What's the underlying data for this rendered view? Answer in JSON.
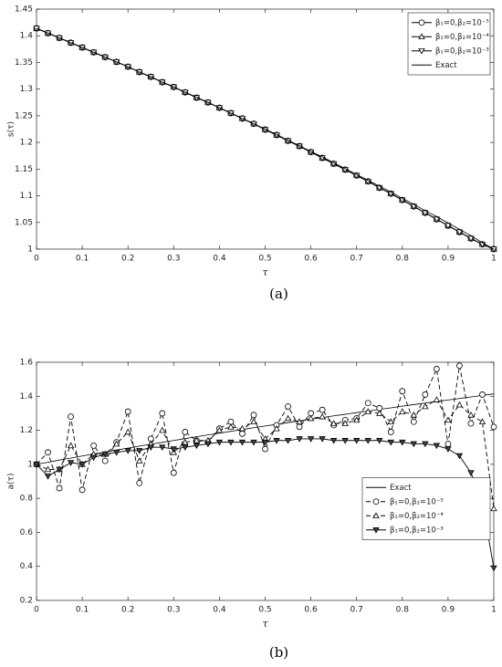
{
  "chart_data": [
    {
      "type": "line",
      "caption": "(a)",
      "xlabel": "τ",
      "ylabel": "s(τ)",
      "x": [
        0,
        0.025,
        0.05,
        0.075,
        0.1,
        0.125,
        0.15,
        0.175,
        0.2,
        0.225,
        0.25,
        0.275,
        0.3,
        0.325,
        0.35,
        0.375,
        0.4,
        0.425,
        0.45,
        0.475,
        0.5,
        0.525,
        0.55,
        0.575,
        0.6,
        0.625,
        0.65,
        0.675,
        0.7,
        0.725,
        0.75,
        0.775,
        0.8,
        0.825,
        0.85,
        0.875,
        0.9,
        0.925,
        0.95,
        0.975,
        1
      ],
      "xlim": [
        0,
        1
      ],
      "xticks": [
        0,
        0.1,
        0.2,
        0.3,
        0.4,
        0.5,
        0.6,
        0.7,
        0.8,
        0.9,
        1
      ],
      "ylim": [
        1,
        1.45
      ],
      "yticks": [
        1,
        1.05,
        1.1,
        1.15,
        1.2,
        1.25,
        1.3,
        1.35,
        1.4,
        1.45
      ],
      "legend": "northeast",
      "series": [
        {
          "name": "β₁=0,β₂=10⁻⁵",
          "color": "#000000",
          "marker": "o",
          "linestyle": "solid",
          "values": [
            1.414,
            1.405,
            1.396,
            1.387,
            1.378,
            1.369,
            1.36,
            1.351,
            1.342,
            1.332,
            1.323,
            1.313,
            1.304,
            1.294,
            1.284,
            1.275,
            1.265,
            1.255,
            1.245,
            1.235,
            1.224,
            1.214,
            1.203,
            1.193,
            1.182,
            1.171,
            1.16,
            1.149,
            1.138,
            1.127,
            1.115,
            1.104,
            1.092,
            1.08,
            1.068,
            1.056,
            1.044,
            1.032,
            1.02,
            1.009,
            1.0
          ]
        },
        {
          "name": "β₁=0,β₂=10⁻⁴",
          "color": "#000000",
          "marker": "^",
          "linestyle": "solid",
          "values": [
            1.414,
            1.405,
            1.396,
            1.387,
            1.378,
            1.369,
            1.36,
            1.351,
            1.342,
            1.332,
            1.323,
            1.313,
            1.304,
            1.294,
            1.284,
            1.275,
            1.265,
            1.255,
            1.245,
            1.235,
            1.224,
            1.214,
            1.203,
            1.193,
            1.182,
            1.171,
            1.16,
            1.149,
            1.138,
            1.127,
            1.115,
            1.104,
            1.092,
            1.08,
            1.068,
            1.056,
            1.044,
            1.032,
            1.02,
            1.009,
            1.0
          ]
        },
        {
          "name": "β₁=0,β₂=10⁻³",
          "color": "#000000",
          "marker": "v",
          "linestyle": "solid",
          "values": [
            1.414,
            1.405,
            1.396,
            1.387,
            1.378,
            1.369,
            1.36,
            1.351,
            1.342,
            1.332,
            1.323,
            1.313,
            1.304,
            1.294,
            1.284,
            1.275,
            1.265,
            1.255,
            1.245,
            1.235,
            1.224,
            1.214,
            1.203,
            1.193,
            1.182,
            1.171,
            1.16,
            1.149,
            1.138,
            1.127,
            1.115,
            1.104,
            1.092,
            1.08,
            1.068,
            1.056,
            1.044,
            1.032,
            1.02,
            1.009,
            1.0
          ]
        },
        {
          "name": "Exact",
          "color": "#000000",
          "marker": "none",
          "linestyle": "solid",
          "values": [
            1.414,
            1.405,
            1.396,
            1.387,
            1.378,
            1.369,
            1.36,
            1.351,
            1.342,
            1.332,
            1.323,
            1.313,
            1.304,
            1.294,
            1.285,
            1.275,
            1.265,
            1.255,
            1.245,
            1.235,
            1.225,
            1.215,
            1.204,
            1.194,
            1.183,
            1.173,
            1.162,
            1.151,
            1.14,
            1.129,
            1.118,
            1.107,
            1.095,
            1.084,
            1.072,
            1.061,
            1.049,
            1.037,
            1.025,
            1.012,
            1.0
          ]
        }
      ]
    },
    {
      "type": "line",
      "caption": "(b)",
      "xlabel": "τ",
      "ylabel": "a(τ)",
      "x": [
        0,
        0.025,
        0.05,
        0.075,
        0.1,
        0.125,
        0.15,
        0.175,
        0.2,
        0.225,
        0.25,
        0.275,
        0.3,
        0.325,
        0.35,
        0.375,
        0.4,
        0.425,
        0.45,
        0.475,
        0.5,
        0.525,
        0.55,
        0.575,
        0.6,
        0.625,
        0.65,
        0.675,
        0.7,
        0.725,
        0.75,
        0.775,
        0.8,
        0.825,
        0.85,
        0.875,
        0.9,
        0.925,
        0.95,
        0.975,
        1
      ],
      "xlim": [
        0,
        1
      ],
      "xticks": [
        0,
        0.1,
        0.2,
        0.3,
        0.4,
        0.5,
        0.6,
        0.7,
        0.8,
        0.9,
        1
      ],
      "ylim": [
        0.2,
        1.6
      ],
      "yticks": [
        0.2,
        0.4,
        0.6,
        0.8,
        1,
        1.2,
        1.4,
        1.6
      ],
      "legend": "east",
      "series": [
        {
          "name": "Exact",
          "color": "#000000",
          "marker": "none",
          "linestyle": "solid",
          "values": [
            1.0,
            1.012,
            1.025,
            1.037,
            1.049,
            1.061,
            1.072,
            1.084,
            1.095,
            1.107,
            1.118,
            1.129,
            1.14,
            1.151,
            1.162,
            1.173,
            1.183,
            1.194,
            1.204,
            1.215,
            1.225,
            1.235,
            1.245,
            1.255,
            1.265,
            1.275,
            1.285,
            1.294,
            1.304,
            1.313,
            1.323,
            1.332,
            1.342,
            1.351,
            1.36,
            1.369,
            1.378,
            1.387,
            1.396,
            1.405,
            1.414
          ]
        },
        {
          "name": "β₁=0,β₂=10⁻⁵",
          "color": "#000000",
          "marker": "o",
          "linestyle": "dash",
          "values": [
            1.0,
            1.07,
            0.86,
            1.28,
            0.85,
            1.11,
            1.02,
            1.13,
            1.31,
            0.89,
            1.15,
            1.3,
            0.95,
            1.19,
            1.14,
            1.13,
            1.21,
            1.25,
            1.18,
            1.29,
            1.09,
            1.23,
            1.34,
            1.22,
            1.3,
            1.32,
            1.23,
            1.26,
            1.27,
            1.36,
            1.33,
            1.19,
            1.43,
            1.25,
            1.41,
            1.56,
            1.12,
            1.58,
            1.24,
            1.41,
            1.22
          ]
        },
        {
          "name": "β₁=0,β₂=10⁻⁴",
          "color": "#000000",
          "marker": "^",
          "linestyle": "dash",
          "values": [
            1.0,
            0.97,
            0.97,
            1.11,
            1.0,
            1.06,
            1.06,
            1.12,
            1.19,
            1.02,
            1.12,
            1.2,
            1.07,
            1.13,
            1.14,
            1.14,
            1.2,
            1.22,
            1.21,
            1.25,
            1.15,
            1.21,
            1.27,
            1.25,
            1.27,
            1.28,
            1.24,
            1.24,
            1.26,
            1.31,
            1.3,
            1.25,
            1.31,
            1.29,
            1.34,
            1.38,
            1.26,
            1.35,
            1.29,
            1.25,
            0.74
          ]
        },
        {
          "name": "β₁=0,β₂=10⁻³",
          "color": "#000000",
          "marker": "v",
          "linestyle": "solid",
          "filled": true,
          "values": [
            1.0,
            0.93,
            0.97,
            1.01,
            1.0,
            1.04,
            1.06,
            1.07,
            1.08,
            1.08,
            1.1,
            1.1,
            1.09,
            1.1,
            1.11,
            1.12,
            1.13,
            1.13,
            1.13,
            1.13,
            1.13,
            1.14,
            1.14,
            1.15,
            1.15,
            1.15,
            1.14,
            1.14,
            1.14,
            1.14,
            1.14,
            1.13,
            1.13,
            1.12,
            1.12,
            1.11,
            1.09,
            1.05,
            0.95,
            0.78,
            0.39
          ]
        }
      ]
    }
  ]
}
